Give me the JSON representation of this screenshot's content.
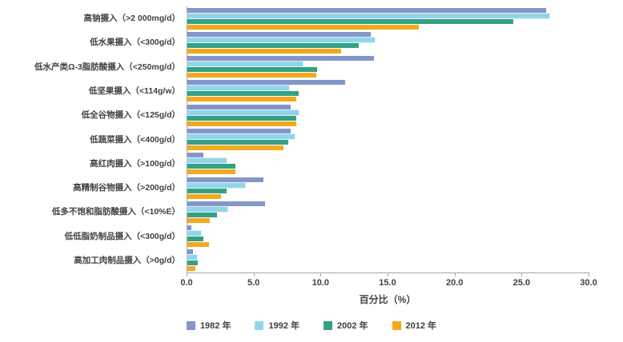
{
  "chart_data": {
    "type": "bar",
    "orientation": "horizontal",
    "title": "",
    "xlabel": "百分比（%）",
    "ylabel": "",
    "xlim": [
      0,
      30
    ],
    "xticks": [
      "0.0",
      "5.0",
      "10.0",
      "15.0",
      "20.0",
      "25.0",
      "30.0"
    ],
    "xtick_values": [
      0,
      5,
      10,
      15,
      20,
      25,
      30
    ],
    "grid": false,
    "legend_position": "bottom",
    "categories": [
      "高钠摄入（>2 000mg/d）",
      "低水果摄入（<300g/d）",
      "低水产类Ω-3脂肪酸摄入（<250mg/d）",
      "低坚果摄入（<114g/w）",
      "低全谷物摄入（<125g/d）",
      "低蔬菜摄入（<400g/d）",
      "高红肉摄入（>100g/d）",
      "高精制谷物摄入（>200g/d）",
      "低多不饱和脂肪酸摄入（<10%E）",
      "低低脂奶制品摄入（<300g/d）",
      "高加工肉制品摄入（>0g/d）"
    ],
    "series": [
      {
        "name": "1982 年",
        "color": "#8496c9",
        "values": [
          26.8,
          13.7,
          13.9,
          11.8,
          7.7,
          7.7,
          1.2,
          5.7,
          5.8,
          0.3,
          0.4
        ]
      },
      {
        "name": "1992 年",
        "color": "#92d4e9",
        "values": [
          27.0,
          14.0,
          8.6,
          7.6,
          8.3,
          8.0,
          2.9,
          4.3,
          3.0,
          1.0,
          0.7
        ]
      },
      {
        "name": "2002 年",
        "color": "#35a184",
        "values": [
          24.3,
          12.8,
          9.7,
          8.3,
          8.1,
          7.5,
          3.6,
          2.9,
          2.2,
          1.2,
          0.8
        ]
      },
      {
        "name": "2012 年",
        "color": "#f3a91d",
        "values": [
          17.3,
          11.5,
          9.6,
          8.1,
          8.1,
          7.2,
          3.6,
          2.5,
          1.7,
          1.6,
          0.6
        ]
      }
    ],
    "axis_color": "#a6a6a6",
    "text_color": "#404040"
  }
}
